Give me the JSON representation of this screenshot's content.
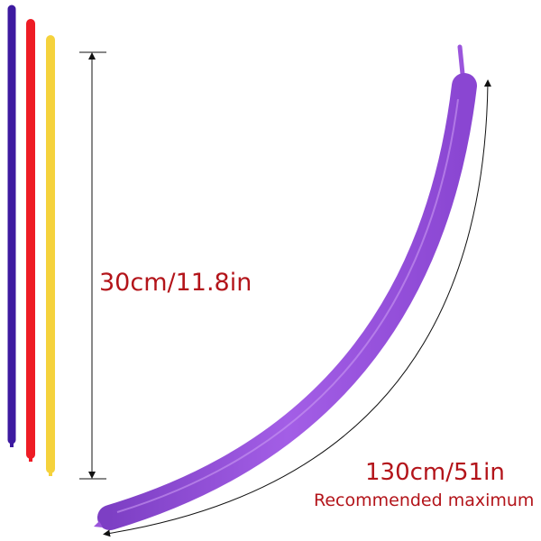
{
  "annotations": {
    "uninflated_length": "30cm/11.8in",
    "inflated_length": "130cm/51in",
    "note": "Recommended maximum"
  }
}
